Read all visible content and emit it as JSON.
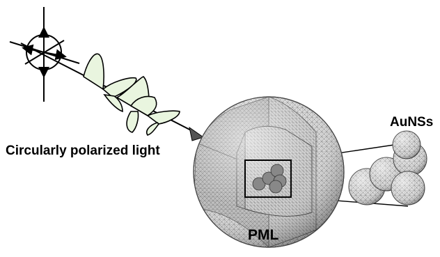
{
  "labels": {
    "light": "Circularly polarized light",
    "nanospheres": "AuNSs",
    "boundary": "PML"
  },
  "colors": {
    "wave_fill": "#e9f5df",
    "sphere_fill": "#dcdcdc",
    "mesh_line": "#6f6f6f",
    "arrow_head": "#555555"
  }
}
